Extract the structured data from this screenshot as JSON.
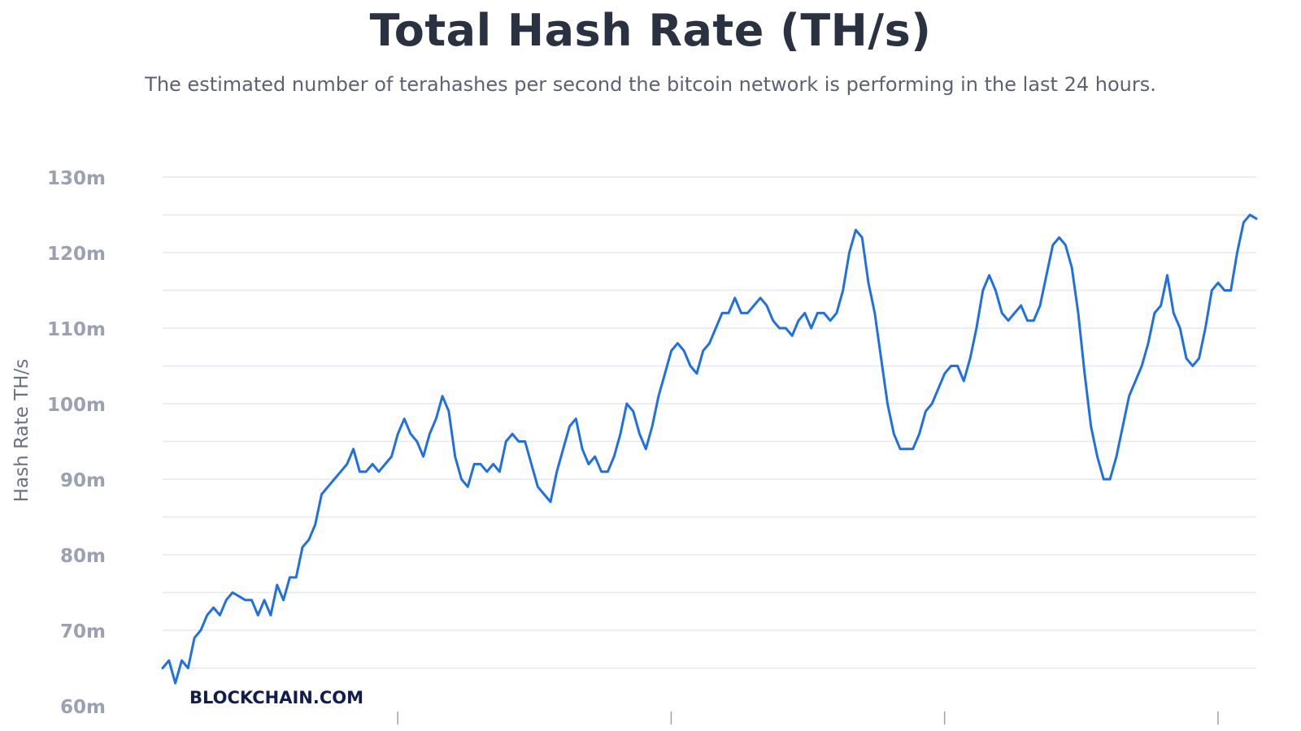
{
  "chart_data": {
    "type": "line",
    "title": "Total Hash Rate (TH/s)",
    "subtitle": "The estimated number of terahashes per second the bitcoin network is performing in the last 24 hours.",
    "ylabel": "Hash Rate TH/s",
    "xlabel": "",
    "ylim": [
      60,
      130
    ],
    "yticks": [
      "60m",
      "70m",
      "80m",
      "90m",
      "100m",
      "110m",
      "120m",
      "130m"
    ],
    "ytick_values": [
      60,
      70,
      80,
      90,
      100,
      110,
      120,
      130
    ],
    "grid": true,
    "x_tick_count": 4,
    "series": [
      {
        "color": "#1f6fe5",
        "values": [
          65,
          66,
          63,
          66,
          65,
          69,
          70,
          72,
          73,
          72,
          74,
          75,
          74.5,
          74,
          74,
          72,
          74,
          72,
          76,
          74,
          77,
          77,
          81,
          82,
          84,
          88,
          89,
          90,
          91,
          92,
          94,
          91,
          91,
          92,
          91,
          92,
          93,
          96,
          98,
          96,
          95,
          93,
          96,
          98,
          101,
          99,
          93,
          90,
          89,
          92,
          92,
          91,
          92,
          91,
          95,
          96,
          95,
          95,
          92,
          89,
          88,
          87,
          91,
          94,
          97,
          98,
          94,
          92,
          93,
          91,
          91,
          93,
          96,
          100,
          99,
          96,
          94,
          97,
          101,
          104,
          107,
          108,
          107,
          105,
          104,
          107,
          108,
          110,
          112,
          112,
          114,
          112,
          112,
          113,
          114,
          113,
          111,
          110,
          110,
          109,
          111,
          112,
          110,
          112,
          112,
          111,
          112,
          115,
          120,
          123,
          122,
          116,
          112,
          106,
          100,
          96,
          94,
          94,
          94,
          96,
          99,
          100,
          102,
          104,
          105,
          105,
          103,
          106,
          110,
          115,
          117,
          115,
          112,
          111,
          112,
          113,
          111,
          111,
          113,
          117,
          121,
          122,
          121,
          118,
          112,
          104,
          97,
          93,
          90,
          90,
          93,
          97,
          101,
          103,
          105,
          108,
          112,
          113,
          117,
          112,
          110,
          106,
          105,
          106,
          110,
          115,
          116,
          115,
          115,
          120,
          124,
          125,
          124.5
        ]
      }
    ]
  },
  "brand": {
    "label": "BLOCKCHAIN.COM"
  }
}
